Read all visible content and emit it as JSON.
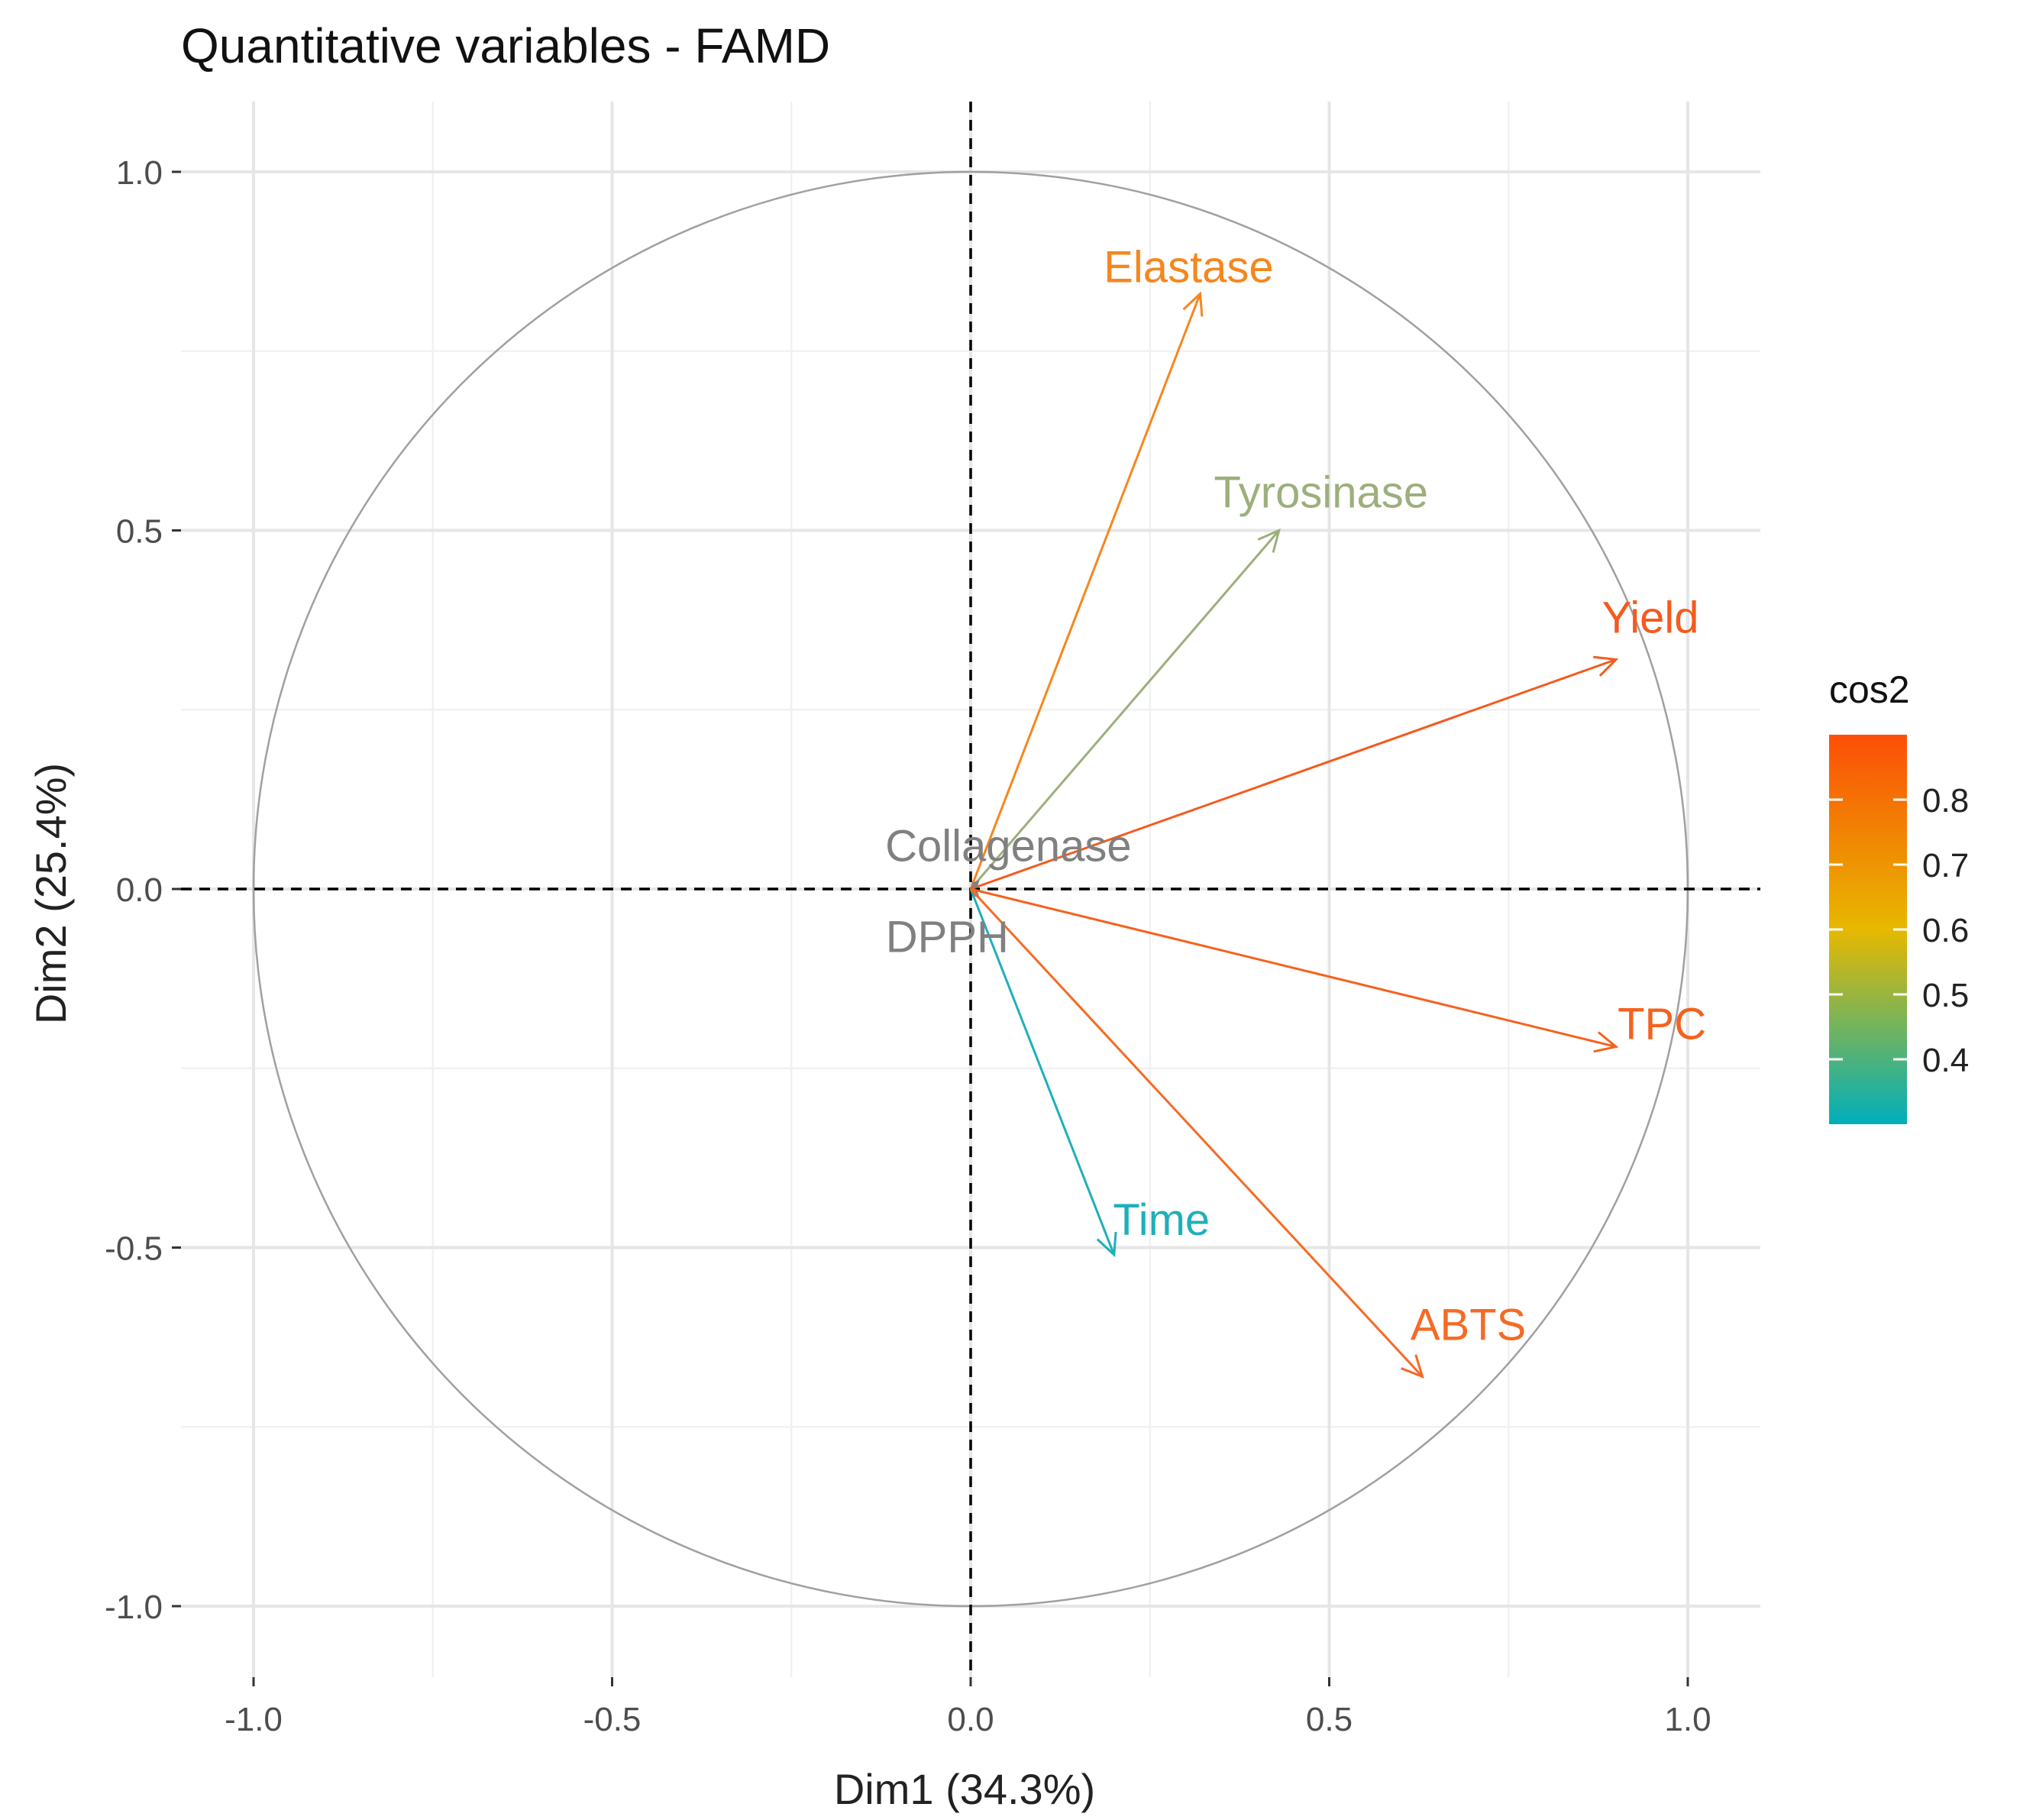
{
  "chart_data": {
    "type": "scatter",
    "subtype": "correlation-circle",
    "title": "Quantitative variables - FAMD",
    "xlabel": "Dim1 (34.3%)",
    "ylabel": "Dim2 (25.4%)",
    "xlim": [
      -1.1,
      1.1
    ],
    "ylim": [
      -1.1,
      1.1
    ],
    "xticks": [
      -1.0,
      -0.5,
      0.0,
      0.5,
      1.0
    ],
    "yticks": [
      -1.0,
      -0.5,
      0.0,
      0.5,
      1.0
    ],
    "xtick_labels": [
      "-1.0",
      "-0.5",
      "0.0",
      "0.5",
      "1.0"
    ],
    "ytick_labels": [
      "-1.0",
      "-0.5",
      "0.0",
      "0.5",
      "1.0"
    ],
    "grid": true,
    "unit_circle": true,
    "reference_lines": "dashed at x=0 and y=0",
    "variables": [
      {
        "name": "Elastase",
        "x": 0.32,
        "y": 0.83,
        "cos2": 0.79,
        "color": "#F5871F"
      },
      {
        "name": "Tyrosinase",
        "x": 0.43,
        "y": 0.5,
        "cos2": 0.44,
        "color": "#9CAF7C"
      },
      {
        "name": "Yield",
        "x": 0.9,
        "y": 0.32,
        "cos2": 0.9,
        "color": "#F55A1E"
      },
      {
        "name": "Collagenase",
        "x": 0.01,
        "y": 0.01,
        "cos2": 0.0,
        "color": "#808080"
      },
      {
        "name": "DPPH",
        "x": 0.01,
        "y": -0.01,
        "cos2": 0.0,
        "color": "#808080"
      },
      {
        "name": "TPC",
        "x": 0.9,
        "y": -0.22,
        "cos2": 0.86,
        "color": "#F5621E"
      },
      {
        "name": "Time",
        "x": 0.2,
        "y": -0.51,
        "cos2": 0.3,
        "color": "#1FAFBA"
      },
      {
        "name": "ABTS",
        "x": 0.63,
        "y": -0.68,
        "cos2": 0.86,
        "color": "#F56A24"
      }
    ],
    "legend": {
      "title": "cos2",
      "position": "right",
      "range": [
        0.3,
        0.9
      ],
      "ticks": [
        0.8,
        0.7,
        0.6,
        0.5,
        0.4
      ],
      "tick_labels": [
        "0.8",
        "0.7",
        "0.6",
        "0.5",
        "0.4"
      ],
      "gradient_colors": [
        "#FC4E07",
        "#E7B800",
        "#00AFBB"
      ]
    }
  }
}
